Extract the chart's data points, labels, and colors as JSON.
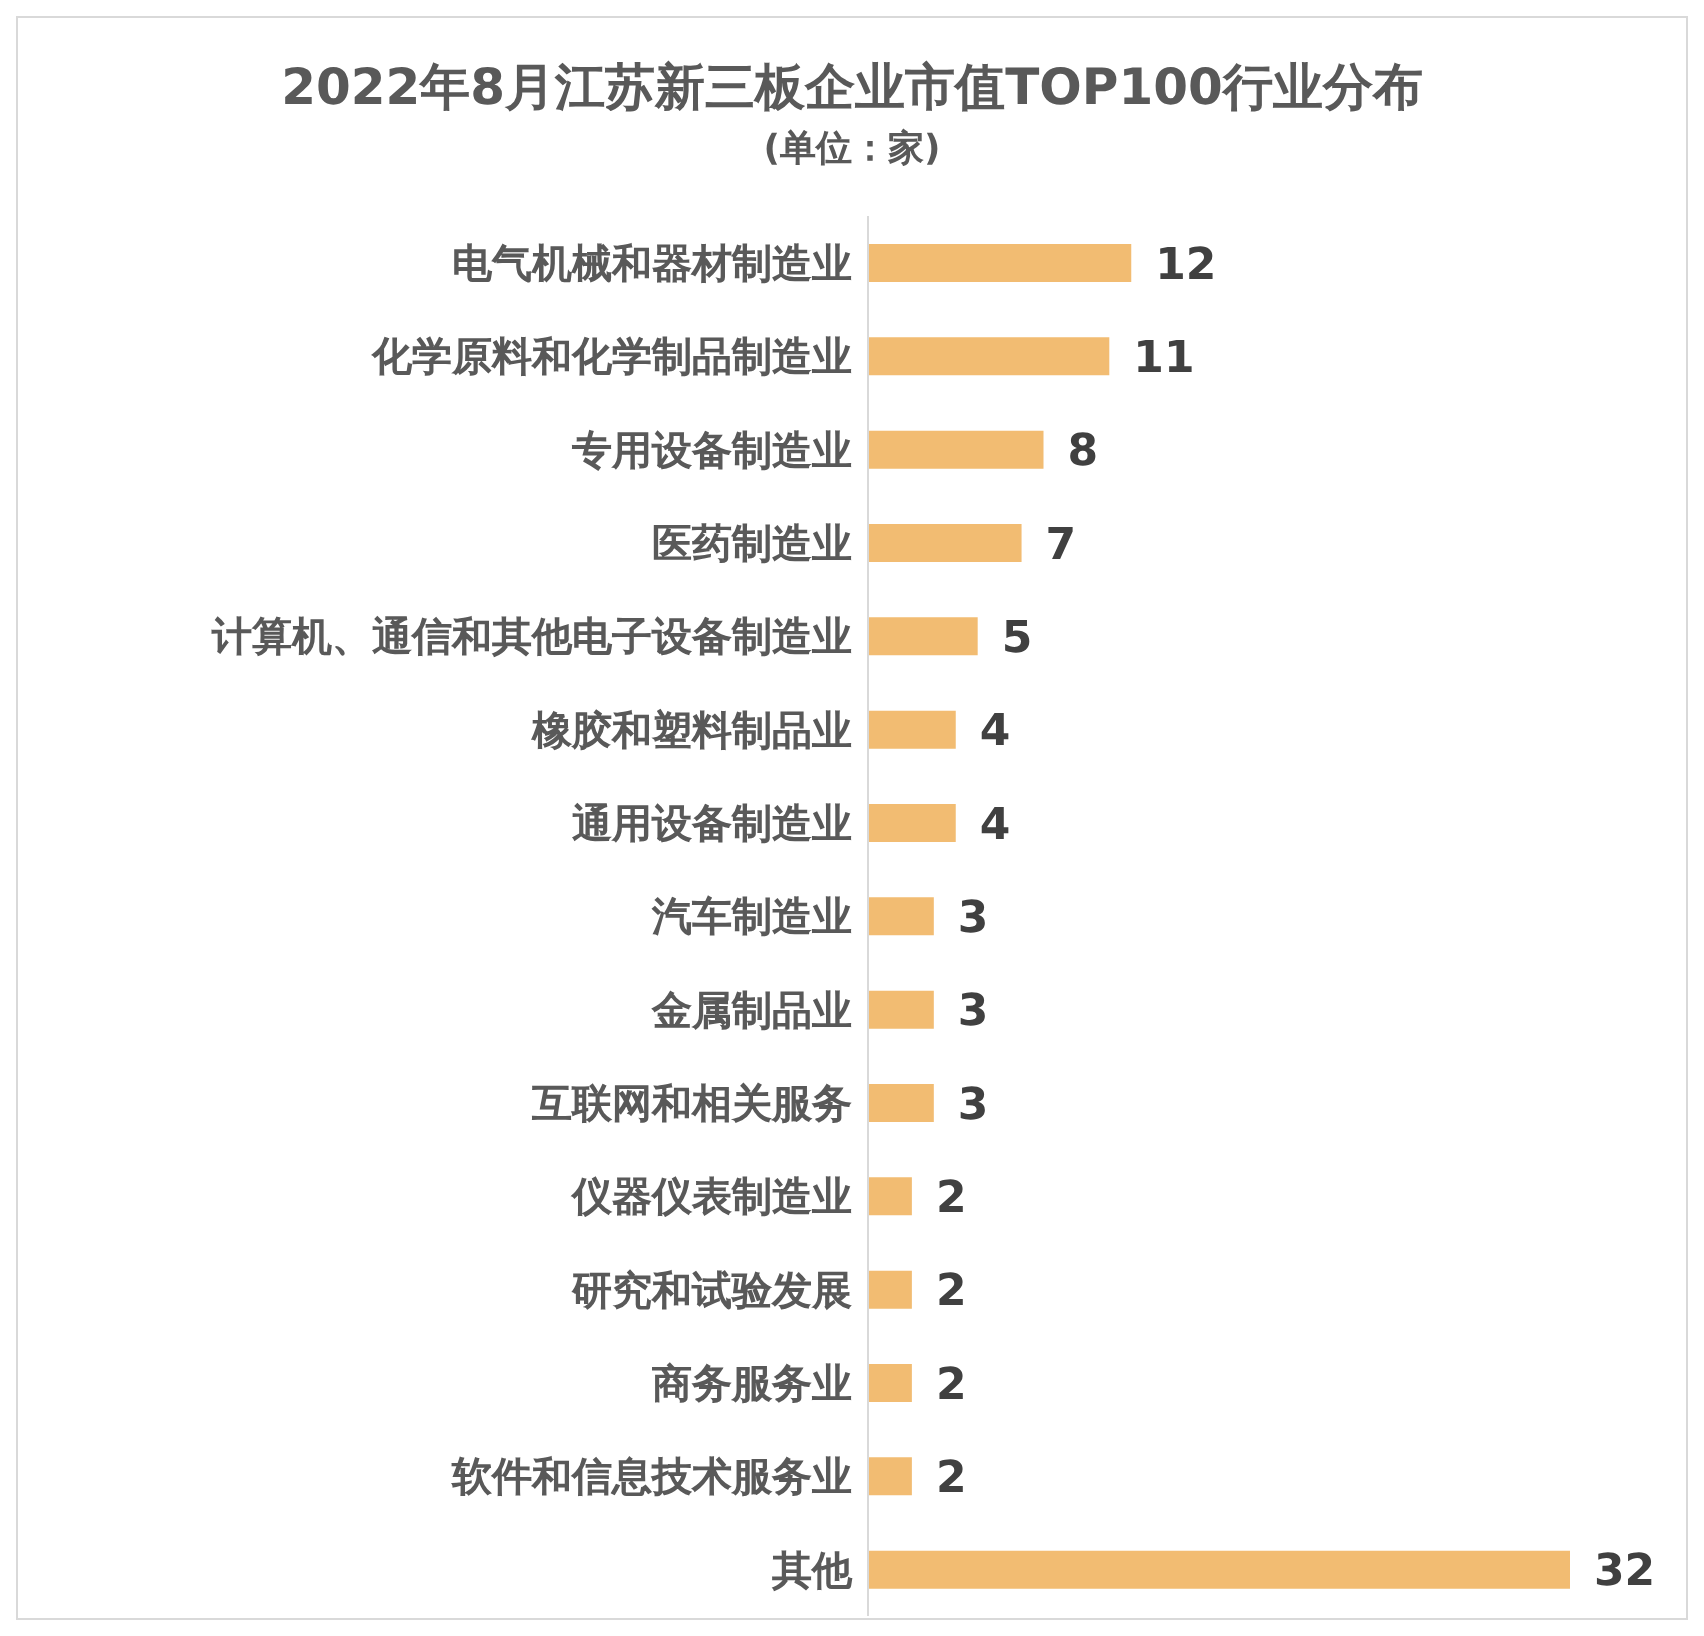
{
  "chart_data": {
    "type": "bar",
    "orientation": "horizontal",
    "title": "2022年8月江苏新三板企业市值TOP100行业分布",
    "subtitle": "(单位：家)",
    "categories": [
      "电气机械和器材制造业",
      "化学原料和化学制品制造业",
      "专用设备制造业",
      "医药制造业",
      "计算机、通信和其他电子设备制造业",
      "橡胶和塑料制品业",
      "通用设备制造业",
      "汽车制造业",
      "金属制品业",
      "互联网和相关服务",
      "仪器仪表制造业",
      "研究和试验发展",
      "商务服务业",
      "软件和信息技术服务业",
      "其他"
    ],
    "values": [
      12,
      11,
      8,
      7,
      5,
      4,
      4,
      3,
      3,
      3,
      2,
      2,
      2,
      2,
      32
    ],
    "color": "#f2bc72",
    "data_labels": true,
    "tick_labels": "y"
  }
}
